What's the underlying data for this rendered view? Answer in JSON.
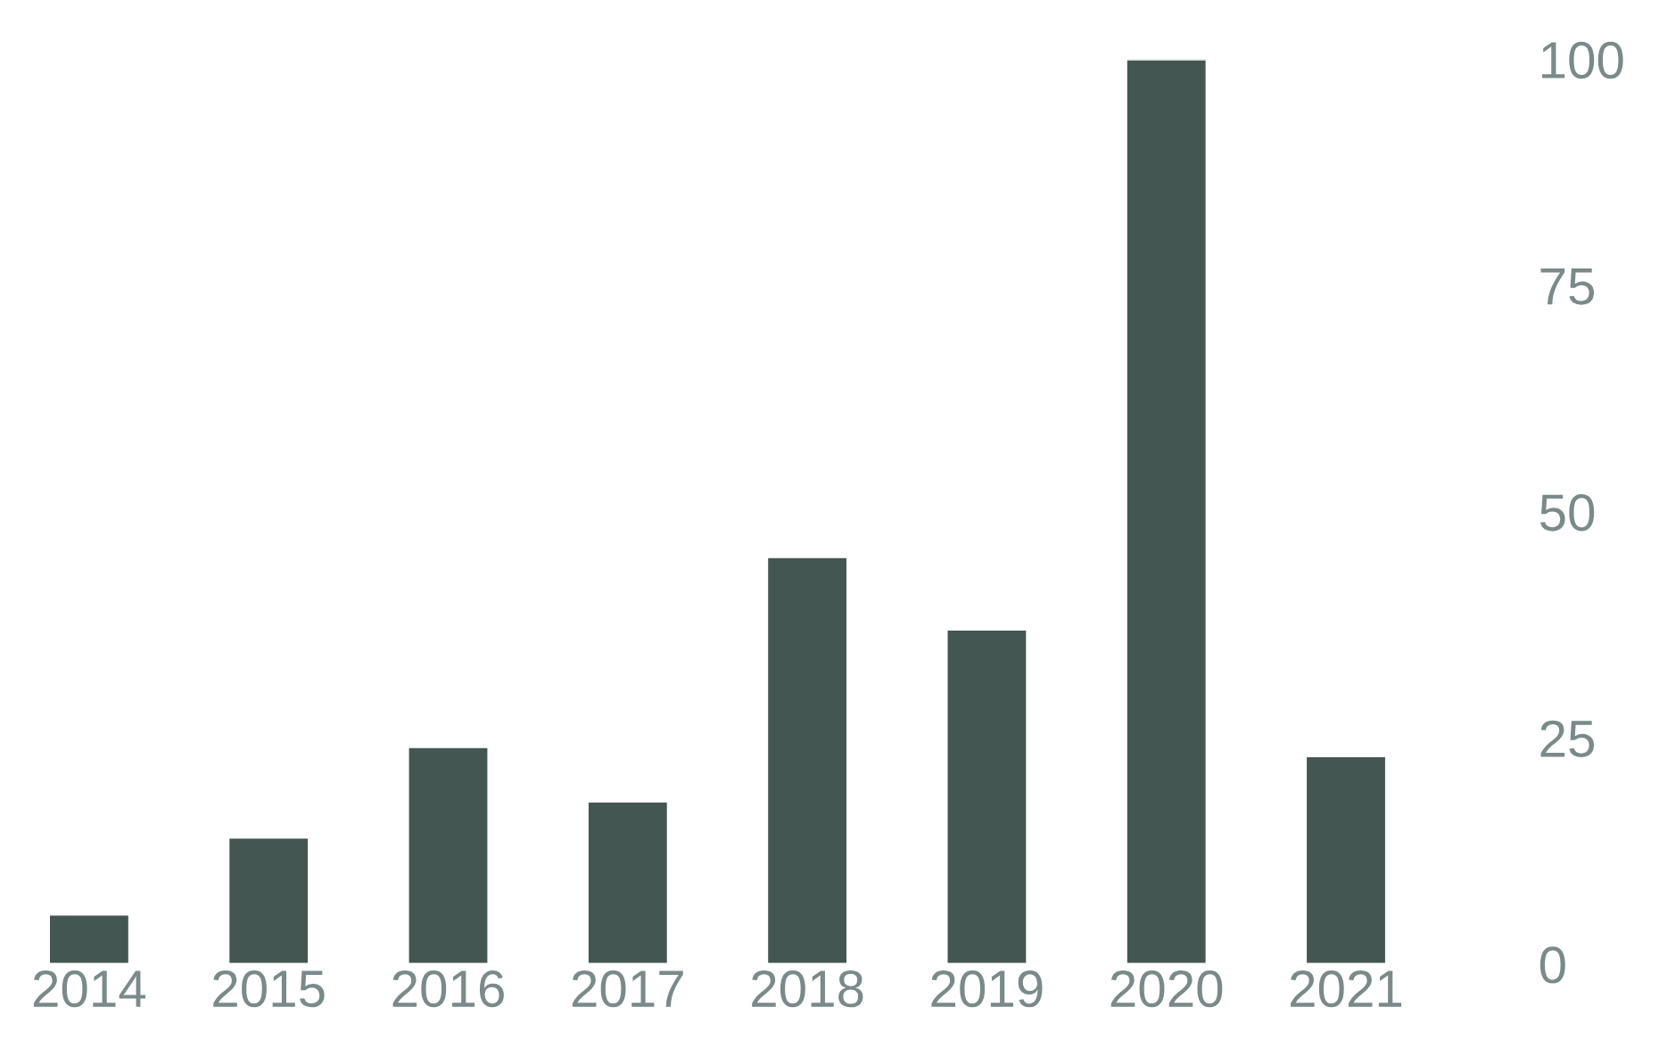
{
  "chart_data": {
    "type": "bar",
    "categories": [
      "2014",
      "2015",
      "2016",
      "2017",
      "2018",
      "2019",
      "2020",
      "2021"
    ],
    "values": [
      5.5,
      14,
      24,
      18,
      45,
      37,
      100,
      23
    ],
    "color": "#435651",
    "ylim": [
      0,
      100
    ],
    "yticks": [
      0,
      25,
      50,
      75,
      100
    ],
    "grid": false
  }
}
